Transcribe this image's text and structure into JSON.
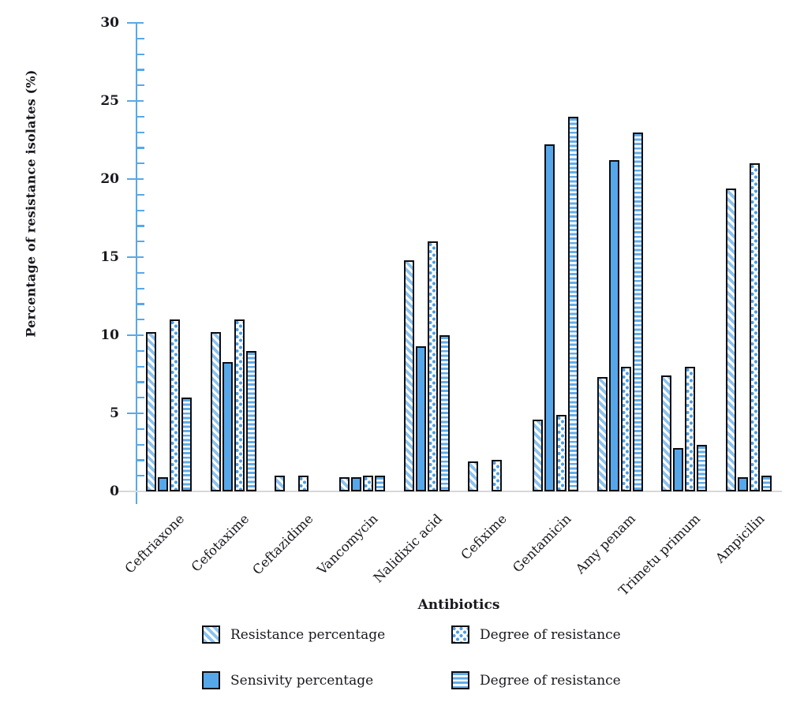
{
  "chart_data": {
    "type": "bar",
    "xlabel": "Antibiotics",
    "ylabel": "Percentage of resistance isolates (%)",
    "ylim": [
      0,
      30
    ],
    "y_major_ticks": [
      0,
      5,
      10,
      15,
      20,
      25,
      30
    ],
    "y_minor_tick_step": 1,
    "grid": false,
    "legend_position": "bottom",
    "categories": [
      "Ceftriaxone",
      "Cefotaxime",
      "Ceftazidime",
      "Vancomycin",
      "Nalidixic acid",
      "Cefixime",
      "Gentamicin",
      "Amy penam",
      "Trimetu primum",
      "Ampicilin"
    ],
    "series": [
      {
        "name": "Resistance percentage",
        "pattern": "diagonal",
        "values": [
          10.2,
          10.2,
          1,
          0.9,
          14.8,
          1.9,
          4.6,
          7.3,
          7.4,
          19.4
        ]
      },
      {
        "name": "Sensivity percentage",
        "pattern": "solid",
        "values": [
          0.9,
          8.3,
          0,
          0.9,
          9.3,
          0,
          22.2,
          21.2,
          2.8,
          0.9
        ]
      },
      {
        "name": "Degree of resistance",
        "pattern": "dotted",
        "values": [
          11,
          11,
          1,
          1,
          16,
          2,
          4.9,
          8,
          8,
          21
        ]
      },
      {
        "name": "Degree of resistance",
        "pattern": "hlines",
        "values": [
          6,
          9,
          0,
          1,
          10,
          0,
          24,
          23,
          3,
          1
        ]
      }
    ],
    "colors": {
      "axis": "#58A9E8",
      "bar_solid": "#56A7EA",
      "pattern_blue": "#4D9EE3",
      "outline": "#0D0D12",
      "baseline": "#D8D8D8",
      "text": "#18181F"
    }
  },
  "legend": {
    "items": [
      {
        "label": "Resistance percentage",
        "swatch": "diagonal"
      },
      {
        "label": "Degree of resistance",
        "swatch": "dotted"
      },
      {
        "label": "Sensivity percentage",
        "swatch": "solid"
      },
      {
        "label": "Degree of resistance",
        "swatch": "hlines"
      }
    ]
  }
}
